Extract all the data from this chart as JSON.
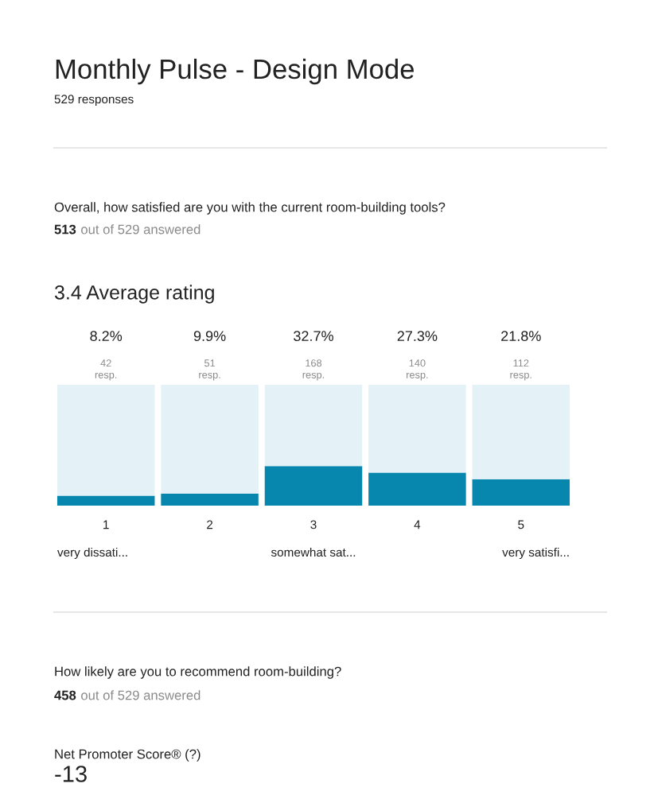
{
  "chart_data": {
    "type": "bar",
    "title": "Monthly Pulse - Design Mode",
    "subtitle": "529 responses",
    "categories": [
      "1",
      "2",
      "3",
      "4",
      "5"
    ],
    "series": [
      {
        "color": "#0787ad",
        "values": [
          8.2,
          9.9,
          32.7,
          27.3,
          21.8
        ],
        "value_labels": [
          "8.2%",
          "9.9%",
          "32.7%",
          "27.3%",
          "21.8%"
        ]
      },
      {
        "color": "#e4f1f6",
        "values": [
          91.8,
          90.1,
          67.3,
          72.7,
          78.2
        ]
      }
    ],
    "stacked": true,
    "ylim": [
      0,
      100
    ],
    "tick_labels": "x",
    "grid": false,
    "annotations": [
      "Overall, how satisfied are you with the current room-building tools?",
      "513 out of 529 answered",
      "3.4 Average rating",
      {
        "text": "42\nresp.",
        "x": "1",
        "y": 100
      },
      {
        "text": "51\nresp.",
        "x": "2",
        "y": 100
      },
      {
        "text": "168\nresp.",
        "x": "3",
        "y": 100
      },
      {
        "text": "140\nresp.",
        "x": "4",
        "y": 100
      },
      {
        "text": "112\nresp.",
        "x": "5",
        "y": 100
      },
      "very dissati...",
      "somewhat sat...",
      "very satisfi...",
      "How likely are you to recommend room-building?",
      "458 out of 529 answered",
      "Net Promoter Score® (?)",
      "-13"
    ]
  }
}
